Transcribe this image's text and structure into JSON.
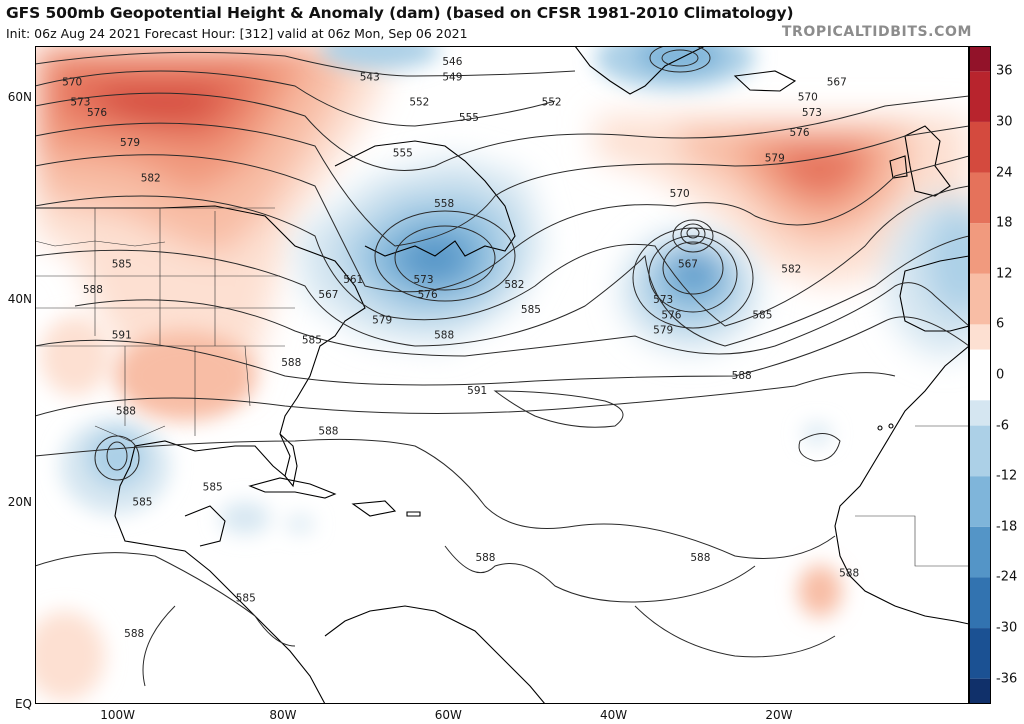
{
  "header": {
    "title": "GFS 500mb Geopotential Height & Anomaly (dam) (based on CFSR 1981-2010 Climatology)",
    "subtitle": "Init: 06z Aug 24 2021   Forecast Hour: [312]   valid at 06z Mon, Sep 06 2021",
    "watermark": "TROPICALTIDBITS.COM"
  },
  "axes": {
    "latitudes": [
      {
        "label": "60N",
        "lat": 60
      },
      {
        "label": "40N",
        "lat": 40
      },
      {
        "label": "20N",
        "lat": 20
      },
      {
        "label": "EQ",
        "lat": 0
      }
    ],
    "longitudes": [
      {
        "label": "100W",
        "lon": -100
      },
      {
        "label": "80W",
        "lon": -80
      },
      {
        "label": "60W",
        "lon": -60
      },
      {
        "label": "40W",
        "lon": -40
      },
      {
        "label": "20W",
        "lon": -20
      }
    ],
    "lat_range": [
      0,
      65
    ],
    "lon_range": [
      -110,
      3
    ]
  },
  "colorbar": {
    "range": [
      -39,
      39
    ],
    "tick_labels": [
      "36",
      "30",
      "24",
      "18",
      "12",
      "6",
      "0",
      "-6",
      "-12",
      "-18",
      "-24",
      "-30",
      "-36"
    ],
    "tick_values": [
      36,
      30,
      24,
      18,
      12,
      6,
      0,
      -6,
      -12,
      -18,
      -24,
      -30,
      -36
    ],
    "colors_positive": [
      "#fde0d2",
      "#f8bda5",
      "#f19a7e",
      "#e5725b",
      "#d44a3e",
      "#b8242d",
      "#921229",
      "#751a54"
    ],
    "colors_negative": [
      "#d5e6f1",
      "#acd0e7",
      "#7fb5da",
      "#5495c7",
      "#3273b0",
      "#1b5193",
      "#10306a",
      "#0b1c46"
    ],
    "neutral": "#ffffff"
  },
  "anomaly_regions": [
    {
      "name": "Canada / Great Plains ridge",
      "sign": "positive",
      "peak": 24
    },
    {
      "name": "Central Atlantic ridge near 55N 25W",
      "sign": "positive",
      "peak": 18
    },
    {
      "name": "Trough off New England / Nova Scotia",
      "sign": "negative",
      "peak": -24
    },
    {
      "name": "Cut-off low near 47N 33W",
      "sign": "negative",
      "peak": -24
    },
    {
      "name": "Northern Greenland low",
      "sign": "negative",
      "peak": -18
    },
    {
      "name": "Iberia trough",
      "sign": "negative",
      "peak": -12
    },
    {
      "name": "Gulf of Mexico low",
      "sign": "negative",
      "peak": -12
    },
    {
      "name": "Caribbean weak negative",
      "sign": "negative",
      "peak": -6
    },
    {
      "name": "West Africa coast positive",
      "sign": "positive",
      "peak": 6
    }
  ],
  "contour_labels": [
    {
      "text": "570",
      "lon": -105.5,
      "lat": 61.5
    },
    {
      "text": "573",
      "lon": -104.5,
      "lat": 59.5
    },
    {
      "text": "576",
      "lon": -102.5,
      "lat": 58.5
    },
    {
      "text": "579",
      "lon": -98.5,
      "lat": 55.5
    },
    {
      "text": "582",
      "lon": -96,
      "lat": 52
    },
    {
      "text": "585",
      "lon": -99.5,
      "lat": 43.5
    },
    {
      "text": "588",
      "lon": -103,
      "lat": 41
    },
    {
      "text": "591",
      "lon": -99.5,
      "lat": 36.5
    },
    {
      "text": "585",
      "lon": -76.5,
      "lat": 36
    },
    {
      "text": "588",
      "lon": -79,
      "lat": 33.8
    },
    {
      "text": "588",
      "lon": -99,
      "lat": 29
    },
    {
      "text": "585",
      "lon": -97,
      "lat": 20
    },
    {
      "text": "585",
      "lon": -88.5,
      "lat": 21.5
    },
    {
      "text": "585",
      "lon": -84.5,
      "lat": 10.5
    },
    {
      "text": "588",
      "lon": -98,
      "lat": 7
    },
    {
      "text": "588",
      "lon": -74.5,
      "lat": 27
    },
    {
      "text": "588",
      "lon": -55.5,
      "lat": 14.5
    },
    {
      "text": "588",
      "lon": -29.5,
      "lat": 14.5
    },
    {
      "text": "588",
      "lon": -11.5,
      "lat": 13
    },
    {
      "text": "591",
      "lon": -56.5,
      "lat": 31
    },
    {
      "text": "543",
      "lon": -69.5,
      "lat": 62
    },
    {
      "text": "546",
      "lon": -59.5,
      "lat": 63.5
    },
    {
      "text": "549",
      "lon": -59.5,
      "lat": 62
    },
    {
      "text": "552",
      "lon": -63.5,
      "lat": 59.5
    },
    {
      "text": "552",
      "lon": -47.5,
      "lat": 59.5
    },
    {
      "text": "555",
      "lon": -57.5,
      "lat": 58
    },
    {
      "text": "555",
      "lon": -65.5,
      "lat": 54.5
    },
    {
      "text": "558",
      "lon": -60.5,
      "lat": 49.5
    },
    {
      "text": "561",
      "lon": -71.5,
      "lat": 42
    },
    {
      "text": "567",
      "lon": -74.5,
      "lat": 40.5
    },
    {
      "text": "573",
      "lon": -63,
      "lat": 42
    },
    {
      "text": "576",
      "lon": -62.5,
      "lat": 40.5
    },
    {
      "text": "579",
      "lon": -68,
      "lat": 38
    },
    {
      "text": "582",
      "lon": -52,
      "lat": 41.5
    },
    {
      "text": "585",
      "lon": -50,
      "lat": 39
    },
    {
      "text": "588",
      "lon": -60.5,
      "lat": 36.5
    },
    {
      "text": "570",
      "lon": -32,
      "lat": 50.5
    },
    {
      "text": "567",
      "lon": -31,
      "lat": 43.5
    },
    {
      "text": "573",
      "lon": -34,
      "lat": 40
    },
    {
      "text": "576",
      "lon": -33,
      "lat": 38.5
    },
    {
      "text": "579",
      "lon": -34,
      "lat": 37
    },
    {
      "text": "582",
      "lon": -18.5,
      "lat": 43
    },
    {
      "text": "585",
      "lon": -22,
      "lat": 38.5
    },
    {
      "text": "588",
      "lon": -24.5,
      "lat": 32.5
    },
    {
      "text": "567",
      "lon": -13,
      "lat": 61.5
    },
    {
      "text": "570",
      "lon": -16.5,
      "lat": 60
    },
    {
      "text": "573",
      "lon": -16,
      "lat": 58.5
    },
    {
      "text": "576",
      "lon": -17.5,
      "lat": 56.5
    },
    {
      "text": "579",
      "lon": -20.5,
      "lat": 54
    }
  ]
}
